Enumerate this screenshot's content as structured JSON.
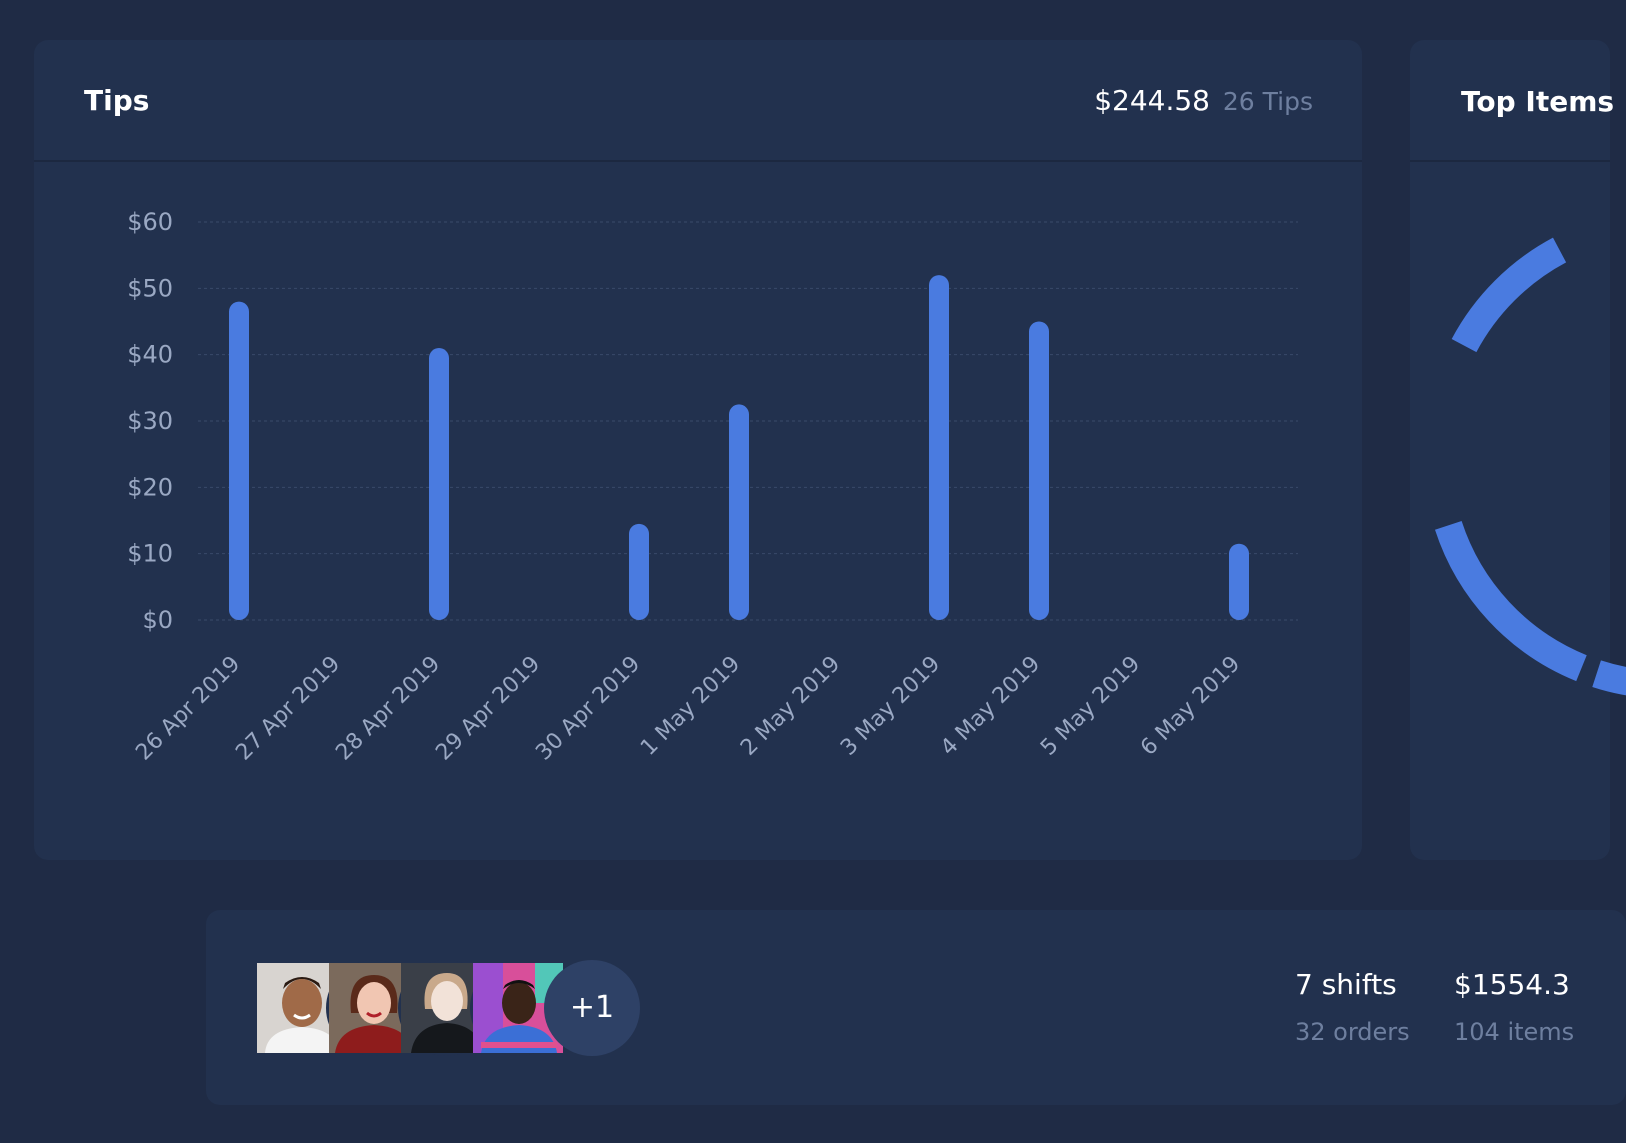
{
  "tips_card": {
    "title": "Tips",
    "total": "$244.58",
    "count": "26 Tips"
  },
  "top_items_card": {
    "title": "Top Items"
  },
  "team_card": {
    "more_label": "+1",
    "shifts": "7 shifts",
    "orders": "32 orders",
    "revenue": "$1554.3",
    "items": "104 items"
  },
  "colors": {
    "bar": "#4a7be0",
    "grid": "#3a4a6a",
    "tick_text": "#9aa8c3"
  },
  "chart_data": {
    "type": "bar",
    "title": "Tips",
    "categories": [
      "26 Apr 2019",
      "27 Apr 2019",
      "28 Apr 2019",
      "29 Apr 2019",
      "30 Apr 2019",
      "1 May 2019",
      "2 May 2019",
      "3 May 2019",
      "4 May 2019",
      "5 May 2019",
      "6 May 2019"
    ],
    "values": [
      48,
      0,
      41,
      0,
      14.5,
      32.5,
      0,
      52,
      45,
      0,
      11.5
    ],
    "y_ticks": [
      "$0",
      "$10",
      "$20",
      "$30",
      "$40",
      "$50",
      "$60"
    ],
    "ylim": [
      0,
      60
    ],
    "grid": true,
    "xlabel": "",
    "ylabel": ""
  }
}
